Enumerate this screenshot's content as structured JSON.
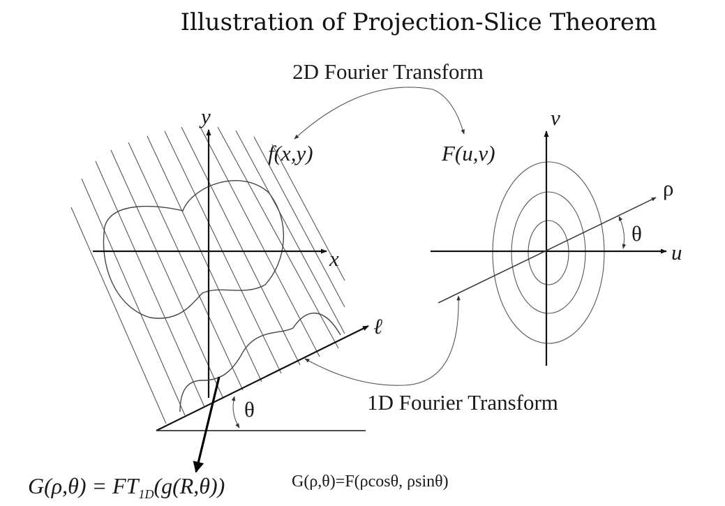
{
  "title": "Illustration of Projection-Slice Theorem",
  "labels": {
    "ft2d": "2D Fourier Transform",
    "ft1d": "1D Fourier Transform",
    "f_xy": "f(x,y)",
    "F_uv": "F(u,v)",
    "x_axis": "x",
    "y_axis": "y",
    "u_axis": "u",
    "v_axis": "v",
    "rho_axis": "ρ",
    "ell_axis": "ℓ",
    "theta_left": "θ",
    "theta_right": "θ"
  },
  "equations": {
    "G_main": "G(ρ,θ) = FT",
    "G_sub": "1D",
    "G_tail": "(g(R,θ))",
    "slice": "G(ρ,θ)=F(ρcosθ, ρsinθ)"
  }
}
